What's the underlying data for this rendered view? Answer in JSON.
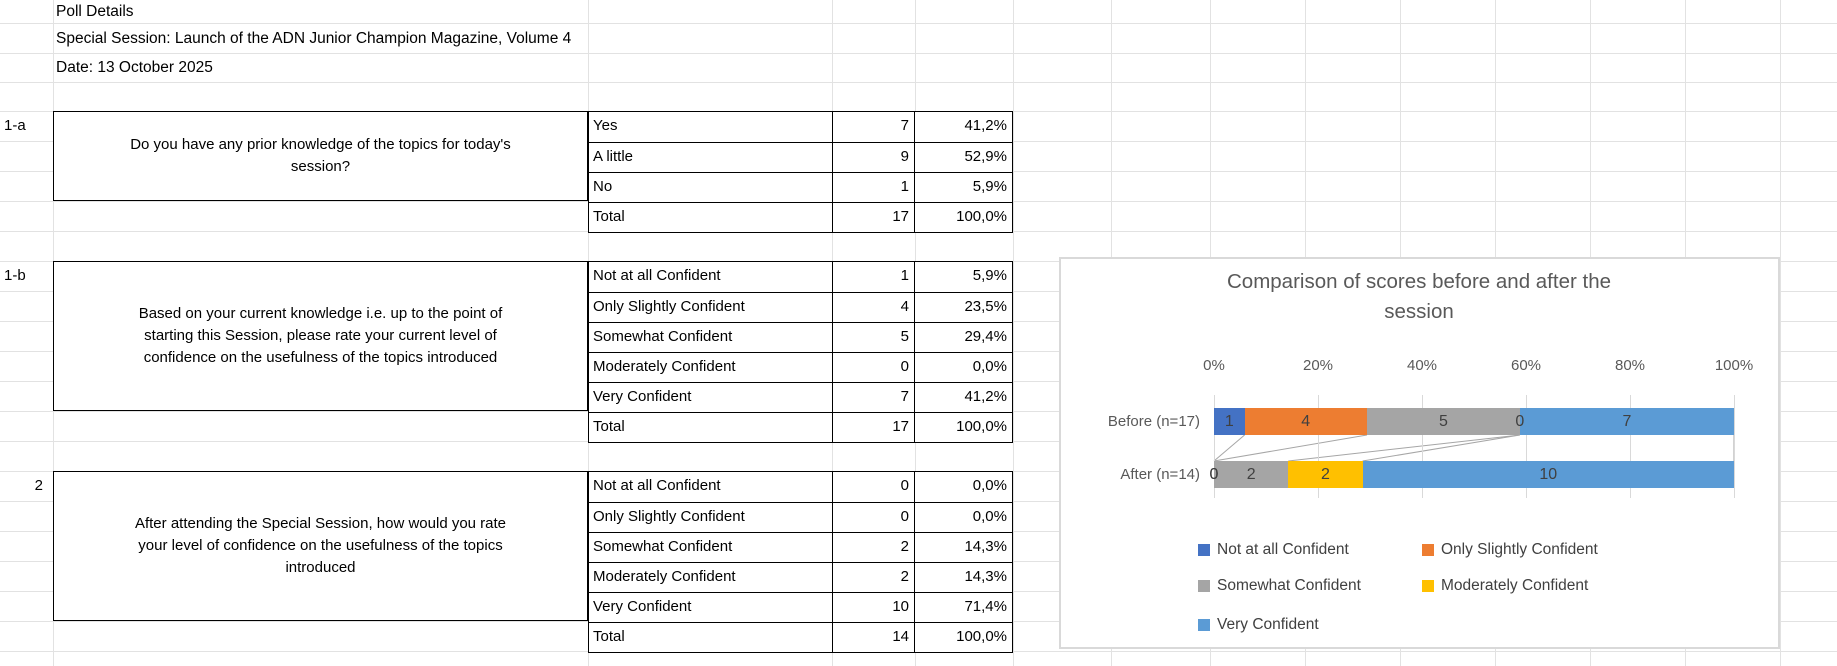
{
  "sheet": {
    "title_rows": [
      "Poll Details",
      "Special Session: Launch of the ADN Junior Champion Magazine, Volume 4",
      "Date: 13 October 2025"
    ]
  },
  "sections": [
    {
      "id": "1-a",
      "question": "Do you have any prior knowledge of the topics for today's session?",
      "rows": [
        {
          "label": "Yes",
          "count": "7",
          "pct": "41,2%"
        },
        {
          "label": "A little",
          "count": "9",
          "pct": "52,9%"
        },
        {
          "label": "No",
          "count": "1",
          "pct": "5,9%"
        },
        {
          "label": "Total",
          "count": "17",
          "pct": "100,0%"
        }
      ]
    },
    {
      "id": "1-b",
      "question": "Based on your current knowledge i.e. up to the point of starting this Session, please rate your current level of confidence on the usefulness of the topics introduced",
      "rows": [
        {
          "label": "Not at all Confident",
          "count": "1",
          "pct": "5,9%"
        },
        {
          "label": "Only Slightly Confident",
          "count": "4",
          "pct": "23,5%"
        },
        {
          "label": "Somewhat Confident",
          "count": "5",
          "pct": "29,4%"
        },
        {
          "label": "Moderately Confident",
          "count": "0",
          "pct": "0,0%"
        },
        {
          "label": "Very Confident",
          "count": "7",
          "pct": "41,2%"
        },
        {
          "label": "Total",
          "count": "17",
          "pct": "100,0%"
        }
      ]
    },
    {
      "id": "2",
      "question": "After attending the Special Session, how would you rate your level of confidence on the usefulness of the topics introduced",
      "rows": [
        {
          "label": "Not at all Confident",
          "count": "0",
          "pct": "0,0%"
        },
        {
          "label": "Only Slightly Confident",
          "count": "0",
          "pct": "0,0%"
        },
        {
          "label": "Somewhat Confident",
          "count": "2",
          "pct": "14,3%"
        },
        {
          "label": "Moderately Confident",
          "count": "2",
          "pct": "14,3%"
        },
        {
          "label": "Very Confident",
          "count": "10",
          "pct": "71,4%"
        },
        {
          "label": "Total",
          "count": "14",
          "pct": "100,0%"
        }
      ]
    }
  ],
  "chart_data": {
    "type": "bar",
    "stacked": true,
    "orientation": "horizontal",
    "title": "Comparison of scores before and after the session",
    "categories": [
      "Before (n=17)",
      "After (n=14)"
    ],
    "category_totals": [
      17,
      14
    ],
    "series": [
      {
        "name": "Not at all Confident",
        "color": "#4472C4",
        "values": [
          1,
          0
        ]
      },
      {
        "name": "Only Slightly Confident",
        "color": "#ED7D31",
        "values": [
          4,
          0
        ]
      },
      {
        "name": "Somewhat Confident",
        "color": "#A5A5A5",
        "values": [
          5,
          2
        ]
      },
      {
        "name": "Moderately Confident",
        "color": "#FFC000",
        "values": [
          0,
          2
        ]
      },
      {
        "name": "Very Confident",
        "color": "#5B9BD5",
        "values": [
          7,
          10
        ]
      }
    ],
    "x_ticks": [
      "0%",
      "20%",
      "40%",
      "60%",
      "80%",
      "100%"
    ],
    "xlim": [
      0,
      100
    ],
    "grid": true,
    "legend_position": "bottom",
    "title_color": "#595959",
    "axis_label_color": "#595959",
    "data_label_color": "#404040",
    "series_line_color": "#a6a6a6"
  }
}
